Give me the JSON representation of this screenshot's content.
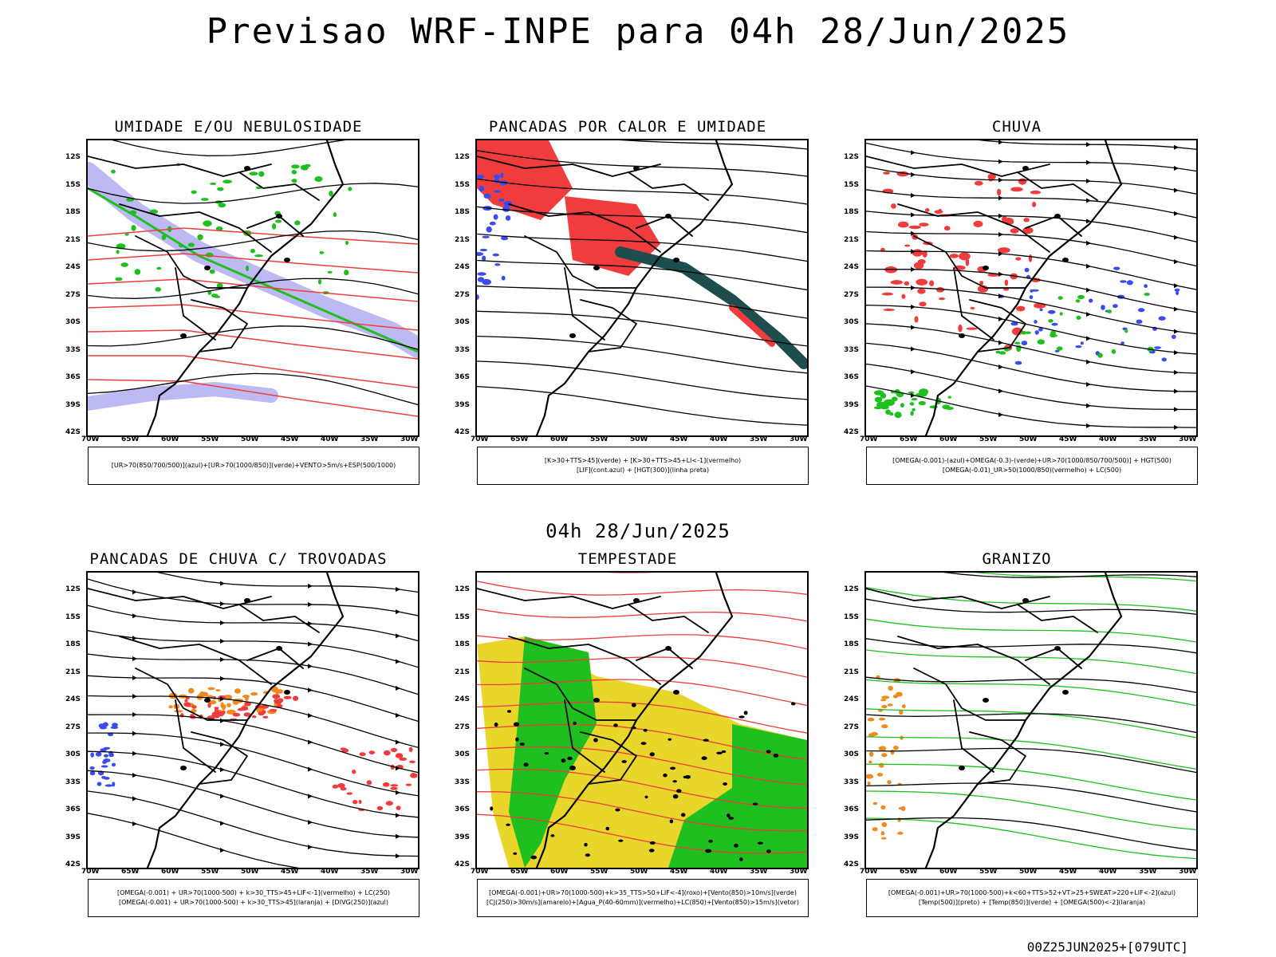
{
  "header": {
    "title": "Previsao WRF-INPE  para 04h 28/Jun/2025"
  },
  "middle": {
    "title": "04h 28/Jun/2025"
  },
  "footer": {
    "run": "00Z25JUN2025+[079UTC]"
  },
  "lat_labels": [
    "12S",
    "15S",
    "18S",
    "21S",
    "24S",
    "27S",
    "30S",
    "33S",
    "36S",
    "39S",
    "42S"
  ],
  "lon_labels": [
    "70W",
    "65W",
    "60W",
    "55W",
    "50W",
    "45W",
    "40W",
    "35W",
    "30W"
  ],
  "panels": [
    {
      "id": "umidade",
      "title": "UMIDADE E/OU NEBULOSIDADE",
      "legend": [
        "[UR>70(850/700/500)](azul)+[UR>70(1000/850)](verde)+VENTO>5m/s+ESP(500/1000)"
      ]
    },
    {
      "id": "pancadas-calor",
      "title": "PANCADAS POR CALOR E UMIDADE",
      "legend": [
        "[K>30+TTS>45](verde) + [K>30+TTS>45+LI<-1](vermelho)",
        "[LIF](cont.azul) + [HGT(300)](linha preta)"
      ]
    },
    {
      "id": "chuva",
      "title": "CHUVA",
      "legend": [
        "[OMEGA(-0.001)-(azul)+OMEGA(-0.3)-(verde)+UR>70(1000/850/700/500)] + HGT(500)",
        "[OMEGA(-0.01)_UR>50(1000/850)(vermelho) + LC(500)"
      ]
    },
    {
      "id": "pancadas-trovoadas",
      "title": "PANCADAS DE CHUVA C/ TROVOADAS",
      "legend": [
        "[OMEGA(-0.001) + UR>70(1000-500) + k>30_TTS>45+LIF<-1](vermelho) + LC(250)",
        "[OMEGA(-0.001) + UR>70(1000-500) + k>30_TTS>45](laranja) + [DIVG(250)](azul)"
      ]
    },
    {
      "id": "tempestade",
      "title": "TEMPESTADE",
      "legend": [
        "[OMEGA(-0.001)+UR>70(1000-500)+k>35_TTS>50+LIF<-4](roxo)+[Vento(850)>10m/s](verde)",
        "[CJ(250)>30m/s](amarelo)+[Agua_P(40-60mm)](vermelho)+LC(850)+[Vento(850)>15m/s](vetor)"
      ]
    },
    {
      "id": "granizo",
      "title": "GRANIZO",
      "legend": [
        "[OMEGA(-0.001)+UR>70(1000-500)+k<60+TTS>52+VT>25+SWEAT>220+LIF<-2](azul)",
        "[Temp(500)](preto) + [Temp(850)](verde) + [OMEGA(500)<-2](laranja)"
      ]
    }
  ],
  "colors": {
    "red": "#f03c3c",
    "green": "#1fbf1f",
    "blue": "#3a4cf0",
    "yellow": "#e8d62a",
    "lavender": "#b6b2f2",
    "teal": "#1d4d4d",
    "orange": "#f08a1c"
  }
}
